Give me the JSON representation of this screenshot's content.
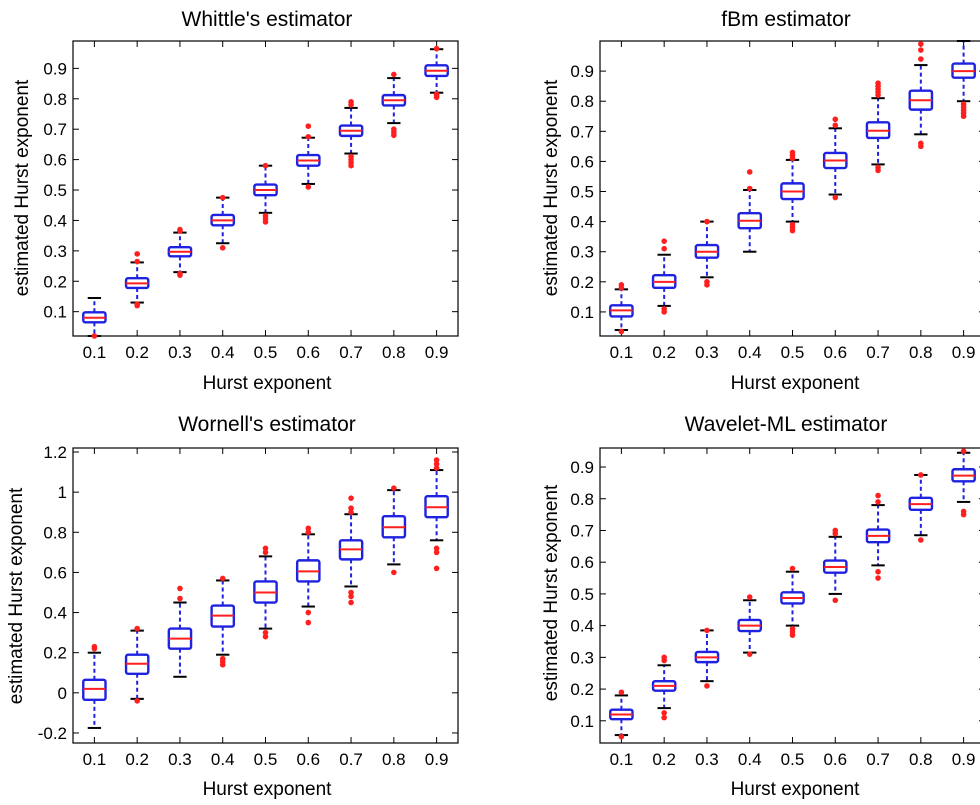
{
  "chart_data": [
    {
      "type": "box",
      "title": "Whittle's estimator",
      "xlabel": "Hurst exponent",
      "ylabel": "estimated Hurst exponent",
      "categories": [
        "0.1",
        "0.2",
        "0.3",
        "0.4",
        "0.5",
        "0.6",
        "0.7",
        "0.8",
        "0.9"
      ],
      "ylim": [
        0.02,
        0.99
      ],
      "yticks": [
        0.1,
        0.2,
        0.3,
        0.4,
        0.5,
        0.6,
        0.7,
        0.8,
        0.9
      ],
      "ytick_labels": [
        "0.1",
        "0.2",
        "0.3",
        "0.4",
        "0.5",
        "0.6",
        "0.7",
        "0.8",
        "0.9"
      ],
      "boxes": [
        {
          "median": 0.08,
          "q1": 0.065,
          "q3": 0.098,
          "whisker_low": 0.02,
          "whisker_high": 0.145,
          "outliers": [
            0.02
          ]
        },
        {
          "median": 0.193,
          "q1": 0.178,
          "q3": 0.21,
          "whisker_low": 0.13,
          "whisker_high": 0.262,
          "outliers": [
            0.12,
            0.125,
            0.265,
            0.29
          ]
        },
        {
          "median": 0.297,
          "q1": 0.282,
          "q3": 0.312,
          "whisker_low": 0.23,
          "whisker_high": 0.36,
          "outliers": [
            0.22,
            0.225,
            0.365,
            0.37
          ]
        },
        {
          "median": 0.4,
          "q1": 0.384,
          "q3": 0.418,
          "whisker_low": 0.325,
          "whisker_high": 0.475,
          "outliers": [
            0.31,
            0.475
          ]
        },
        {
          "median": 0.5,
          "q1": 0.483,
          "q3": 0.518,
          "whisker_low": 0.425,
          "whisker_high": 0.58,
          "outliers": [
            0.395,
            0.405,
            0.415,
            0.58
          ]
        },
        {
          "median": 0.597,
          "q1": 0.58,
          "q3": 0.615,
          "whisker_low": 0.52,
          "whisker_high": 0.672,
          "outliers": [
            0.51,
            0.675,
            0.71
          ]
        },
        {
          "median": 0.695,
          "q1": 0.678,
          "q3": 0.712,
          "whisker_low": 0.62,
          "whisker_high": 0.77,
          "outliers": [
            0.58,
            0.59,
            0.6,
            0.61,
            0.78,
            0.79
          ]
        },
        {
          "median": 0.795,
          "q1": 0.778,
          "q3": 0.812,
          "whisker_low": 0.72,
          "whisker_high": 0.868,
          "outliers": [
            0.68,
            0.69,
            0.7,
            0.88
          ]
        },
        {
          "median": 0.892,
          "q1": 0.875,
          "q3": 0.91,
          "whisker_low": 0.82,
          "whisker_high": 0.963,
          "outliers": [
            0.805,
            0.81,
            0.815,
            0.965
          ]
        }
      ]
    },
    {
      "type": "box",
      "title": "fBm estimator",
      "xlabel": "Hurst exponent",
      "ylabel": "estimated Hurst exponent",
      "categories": [
        "0.1",
        "0.2",
        "0.3",
        "0.4",
        "0.5",
        "0.6",
        "0.7",
        "0.8",
        "0.9"
      ],
      "ylim": [
        0.02,
        1.0
      ],
      "yticks": [
        0.1,
        0.2,
        0.3,
        0.4,
        0.5,
        0.6,
        0.7,
        0.8,
        0.9
      ],
      "ytick_labels": [
        "0.1",
        "0.2",
        "0.3",
        "0.4",
        "0.5",
        "0.6",
        "0.7",
        "0.8",
        "0.9"
      ],
      "boxes": [
        {
          "median": 0.105,
          "q1": 0.085,
          "q3": 0.122,
          "whisker_low": 0.04,
          "whisker_high": 0.175,
          "outliers": [
            0.035,
            0.18,
            0.19
          ]
        },
        {
          "median": 0.2,
          "q1": 0.18,
          "q3": 0.222,
          "whisker_low": 0.12,
          "whisker_high": 0.29,
          "outliers": [
            0.1,
            0.11,
            0.31,
            0.335
          ]
        },
        {
          "median": 0.3,
          "q1": 0.28,
          "q3": 0.322,
          "whisker_low": 0.215,
          "whisker_high": 0.4,
          "outliers": [
            0.19,
            0.2,
            0.4
          ]
        },
        {
          "median": 0.403,
          "q1": 0.378,
          "q3": 0.428,
          "whisker_low": 0.3,
          "whisker_high": 0.505,
          "outliers": [
            0.51,
            0.565
          ]
        },
        {
          "median": 0.5,
          "q1": 0.475,
          "q3": 0.527,
          "whisker_low": 0.4,
          "whisker_high": 0.605,
          "outliers": [
            0.37,
            0.38,
            0.39,
            0.61,
            0.62,
            0.63
          ]
        },
        {
          "median": 0.603,
          "q1": 0.578,
          "q3": 0.628,
          "whisker_low": 0.49,
          "whisker_high": 0.71,
          "outliers": [
            0.48,
            0.72,
            0.74
          ]
        },
        {
          "median": 0.702,
          "q1": 0.678,
          "q3": 0.73,
          "whisker_low": 0.59,
          "whisker_high": 0.81,
          "outliers": [
            0.57,
            0.58,
            0.82,
            0.83,
            0.84,
            0.85,
            0.86
          ]
        },
        {
          "median": 0.803,
          "q1": 0.772,
          "q3": 0.835,
          "whisker_low": 0.69,
          "whisker_high": 0.92,
          "outliers": [
            0.65,
            0.66,
            0.94,
            0.97,
            0.99
          ]
        },
        {
          "median": 0.9,
          "q1": 0.878,
          "q3": 0.925,
          "whisker_low": 0.8,
          "whisker_high": 1.0,
          "outliers": [
            0.75,
            0.76,
            0.77,
            0.78,
            0.79
          ]
        }
      ]
    },
    {
      "type": "box",
      "title": "Wornell's estimator",
      "xlabel": "Hurst exponent",
      "ylabel": "estimated Hurst exponent",
      "categories": [
        "0.1",
        "0.2",
        "0.3",
        "0.4",
        "0.5",
        "0.6",
        "0.7",
        "0.8",
        "0.9"
      ],
      "ylim": [
        -0.25,
        1.22
      ],
      "yticks": [
        -0.2,
        0,
        0.2,
        0.4,
        0.6,
        0.8,
        1,
        1.2
      ],
      "ytick_labels": [
        "-0.2",
        "0",
        "0.2",
        "0.4",
        "0.6",
        "0.8",
        "1",
        "1.2"
      ],
      "boxes": [
        {
          "median": 0.02,
          "q1": -0.035,
          "q3": 0.065,
          "whisker_low": -0.175,
          "whisker_high": 0.2,
          "outliers": [
            0.22,
            0.23
          ]
        },
        {
          "median": 0.145,
          "q1": 0.095,
          "q3": 0.19,
          "whisker_low": -0.03,
          "whisker_high": 0.31,
          "outliers": [
            -0.04,
            0.32
          ]
        },
        {
          "median": 0.27,
          "q1": 0.22,
          "q3": 0.32,
          "whisker_low": 0.08,
          "whisker_high": 0.45,
          "outliers": [
            0.47,
            0.52
          ]
        },
        {
          "median": 0.385,
          "q1": 0.33,
          "q3": 0.435,
          "whisker_low": 0.19,
          "whisker_high": 0.56,
          "outliers": [
            0.14,
            0.155,
            0.17,
            0.57
          ]
        },
        {
          "median": 0.5,
          "q1": 0.45,
          "q3": 0.555,
          "whisker_low": 0.32,
          "whisker_high": 0.68,
          "outliers": [
            0.28,
            0.3,
            0.7,
            0.72
          ]
        },
        {
          "median": 0.605,
          "q1": 0.555,
          "q3": 0.66,
          "whisker_low": 0.43,
          "whisker_high": 0.79,
          "outliers": [
            0.35,
            0.4,
            0.8,
            0.82
          ]
        },
        {
          "median": 0.715,
          "q1": 0.665,
          "q3": 0.76,
          "whisker_low": 0.53,
          "whisker_high": 0.89,
          "outliers": [
            0.45,
            0.48,
            0.5,
            0.9,
            0.92,
            0.97
          ]
        },
        {
          "median": 0.825,
          "q1": 0.775,
          "q3": 0.88,
          "whisker_low": 0.64,
          "whisker_high": 1.01,
          "outliers": [
            0.6,
            1.02
          ]
        },
        {
          "median": 0.925,
          "q1": 0.875,
          "q3": 0.98,
          "whisker_low": 0.76,
          "whisker_high": 1.11,
          "outliers": [
            0.62,
            0.7,
            0.72,
            1.12,
            1.14,
            1.16
          ]
        }
      ]
    },
    {
      "type": "box",
      "title": "Wavelet-ML estimator",
      "xlabel": "Hurst exponent",
      "ylabel": "estimated Hurst exponent",
      "categories": [
        "0.1",
        "0.2",
        "0.3",
        "0.4",
        "0.5",
        "0.6",
        "0.7",
        "0.8",
        "0.9"
      ],
      "ylim": [
        0.03,
        0.96
      ],
      "yticks": [
        0.1,
        0.2,
        0.3,
        0.4,
        0.5,
        0.6,
        0.7,
        0.8,
        0.9
      ],
      "ytick_labels": [
        "0.1",
        "0.2",
        "0.3",
        "0.4",
        "0.5",
        "0.6",
        "0.7",
        "0.8",
        "0.9"
      ],
      "boxes": [
        {
          "median": 0.12,
          "q1": 0.105,
          "q3": 0.135,
          "whisker_low": 0.055,
          "whisker_high": 0.18,
          "outliers": [
            0.05,
            0.19
          ]
        },
        {
          "median": 0.21,
          "q1": 0.195,
          "q3": 0.225,
          "whisker_low": 0.14,
          "whisker_high": 0.275,
          "outliers": [
            0.11,
            0.125,
            0.29,
            0.3
          ]
        },
        {
          "median": 0.3,
          "q1": 0.285,
          "q3": 0.317,
          "whisker_low": 0.225,
          "whisker_high": 0.385,
          "outliers": [
            0.21,
            0.385
          ]
        },
        {
          "median": 0.4,
          "q1": 0.383,
          "q3": 0.418,
          "whisker_low": 0.315,
          "whisker_high": 0.48,
          "outliers": [
            0.31,
            0.49
          ]
        },
        {
          "median": 0.487,
          "q1": 0.47,
          "q3": 0.505,
          "whisker_low": 0.4,
          "whisker_high": 0.57,
          "outliers": [
            0.37,
            0.38,
            0.39,
            0.58
          ]
        },
        {
          "median": 0.585,
          "q1": 0.567,
          "q3": 0.605,
          "whisker_low": 0.5,
          "whisker_high": 0.68,
          "outliers": [
            0.48,
            0.69,
            0.7
          ]
        },
        {
          "median": 0.683,
          "q1": 0.663,
          "q3": 0.703,
          "whisker_low": 0.59,
          "whisker_high": 0.78,
          "outliers": [
            0.55,
            0.57,
            0.79,
            0.81
          ]
        },
        {
          "median": 0.783,
          "q1": 0.765,
          "q3": 0.803,
          "whisker_low": 0.685,
          "whisker_high": 0.875,
          "outliers": [
            0.67,
            0.875
          ]
        },
        {
          "median": 0.873,
          "q1": 0.855,
          "q3": 0.893,
          "whisker_low": 0.79,
          "whisker_high": 0.945,
          "outliers": [
            0.75,
            0.76,
            0.95
          ]
        }
      ]
    }
  ]
}
